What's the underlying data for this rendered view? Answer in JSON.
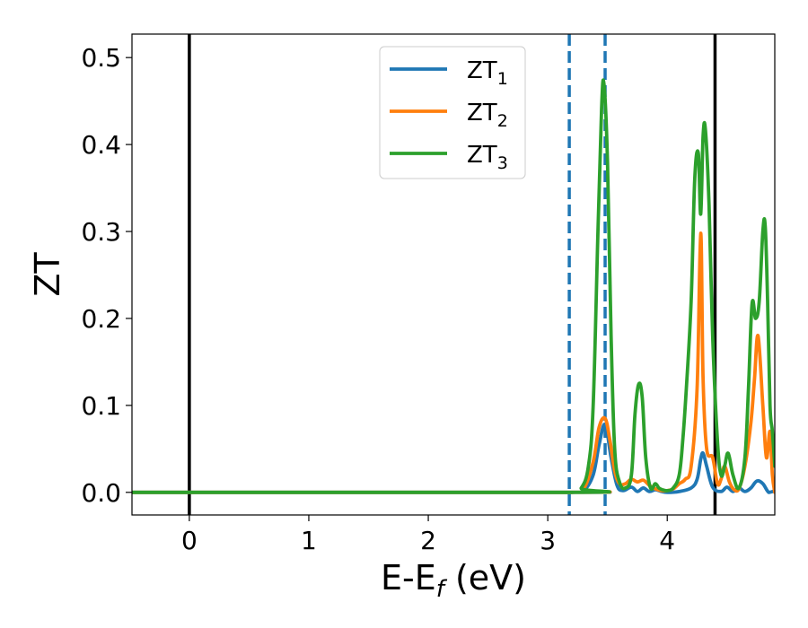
{
  "chart_data": {
    "type": "line",
    "xlabel": {
      "main": "E-E",
      "sub": "f",
      "unit": " (eV)"
    },
    "ylabel": "ZT",
    "xlim": [
      -0.48,
      4.9
    ],
    "ylim": [
      -0.026,
      0.527
    ],
    "xticks": [
      0,
      1,
      2,
      3,
      4
    ],
    "xtick_labels": [
      "0",
      "1",
      "2",
      "3",
      "4"
    ],
    "yticks": [
      0.0,
      0.1,
      0.2,
      0.3,
      0.4,
      0.5
    ],
    "ytick_labels": [
      "0.0",
      "0.1",
      "0.2",
      "0.3",
      "0.4",
      "0.5"
    ],
    "grid": false,
    "legend_position": "top-center",
    "vlines": [
      {
        "x": 0.0,
        "style": "solid",
        "color": "#000000"
      },
      {
        "x": 4.4,
        "style": "solid",
        "color": "#000000"
      },
      {
        "x": 3.18,
        "style": "dashed",
        "color": "#1f77b4"
      },
      {
        "x": 3.48,
        "style": "dashed",
        "color": "#1f77b4"
      }
    ],
    "series": [
      {
        "name": "ZT",
        "sub": "1",
        "color": "#1f77b4",
        "x": [
          -0.48,
          3.2,
          3.3,
          3.38,
          3.43,
          3.48,
          3.53,
          3.58,
          3.63,
          3.7,
          3.75,
          3.8,
          3.85,
          3.9,
          3.95,
          4.0,
          4.1,
          4.2,
          4.25,
          4.28,
          4.3,
          4.33,
          4.38,
          4.45,
          4.5,
          4.55,
          4.6,
          4.65,
          4.7,
          4.75,
          4.8,
          4.85,
          4.9
        ],
        "y": [
          0.0,
          0.0,
          0.002,
          0.02,
          0.055,
          0.078,
          0.04,
          0.008,
          0.002,
          0.006,
          0.001,
          0.005,
          0.001,
          0.003,
          0.001,
          0.0,
          0.001,
          0.005,
          0.015,
          0.038,
          0.045,
          0.03,
          0.006,
          0.001,
          0.006,
          0.001,
          0.005,
          0.001,
          0.005,
          0.013,
          0.01,
          0.0,
          0.002
        ]
      },
      {
        "name": "ZT",
        "sub": "2",
        "color": "#ff7f0e",
        "x": [
          -0.48,
          3.2,
          3.3,
          3.38,
          3.43,
          3.48,
          3.52,
          3.56,
          3.6,
          3.65,
          3.7,
          3.75,
          3.8,
          3.85,
          3.9,
          3.95,
          4.0,
          4.05,
          4.1,
          4.15,
          4.2,
          4.25,
          4.28,
          4.3,
          4.33,
          4.38,
          4.42,
          4.45,
          4.48,
          4.52,
          4.56,
          4.6,
          4.65,
          4.7,
          4.73,
          4.76,
          4.8,
          4.83,
          4.86,
          4.88,
          4.9
        ],
        "y": [
          0.0,
          0.0,
          0.004,
          0.035,
          0.075,
          0.085,
          0.06,
          0.025,
          0.01,
          0.01,
          0.015,
          0.012,
          0.014,
          0.008,
          0.004,
          0.002,
          0.002,
          0.004,
          0.01,
          0.015,
          0.03,
          0.12,
          0.298,
          0.13,
          0.05,
          0.04,
          0.01,
          0.015,
          0.03,
          0.012,
          0.003,
          0.004,
          0.03,
          0.08,
          0.13,
          0.18,
          0.1,
          0.04,
          0.07,
          0.02,
          0.0
        ]
      },
      {
        "name": "ZT",
        "sub": "3",
        "color": "#2ca02c",
        "x": [
          -0.48,
          3.2,
          3.28,
          3.34,
          3.38,
          3.42,
          3.45,
          3.47,
          3.5,
          3.53,
          3.56,
          3.6,
          3.65,
          3.7,
          3.73,
          3.76,
          3.79,
          3.82,
          3.86,
          3.9,
          3.93,
          3.96,
          4.0,
          4.05,
          4.1,
          4.13,
          4.16,
          4.2,
          4.23,
          4.26,
          4.28,
          4.3,
          4.32,
          4.35,
          4.38,
          4.42,
          4.45,
          4.48,
          4.51,
          4.55,
          4.6,
          4.65,
          4.68,
          4.71,
          4.74,
          4.77,
          4.8,
          4.82,
          4.84,
          4.86,
          4.88,
          4.9
        ],
        "y": [
          0.0,
          0.0,
          0.005,
          0.03,
          0.1,
          0.3,
          0.44,
          0.47,
          0.38,
          0.18,
          0.05,
          0.012,
          0.005,
          0.02,
          0.09,
          0.124,
          0.11,
          0.04,
          0.005,
          0.01,
          0.005,
          0.003,
          0.002,
          0.005,
          0.02,
          0.06,
          0.12,
          0.22,
          0.36,
          0.39,
          0.32,
          0.41,
          0.416,
          0.33,
          0.18,
          0.06,
          0.02,
          0.03,
          0.045,
          0.02,
          0.005,
          0.04,
          0.12,
          0.217,
          0.2,
          0.22,
          0.3,
          0.306,
          0.22,
          0.1,
          0.07,
          0.03
        ]
      }
    ]
  }
}
